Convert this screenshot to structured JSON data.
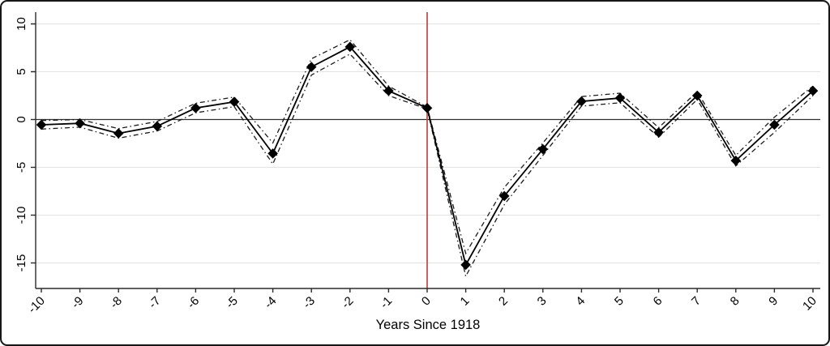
{
  "figure": {
    "kind": "event-study-line-chart",
    "background": "#ffffff",
    "border_color": "#161616"
  },
  "chart_data": {
    "type": "line",
    "title": "",
    "xlabel": "Years Since 1918",
    "ylabel": "",
    "x": [
      -10,
      -9,
      -8,
      -7,
      -6,
      -5,
      -4,
      -3,
      -2,
      -1,
      0,
      1,
      2,
      3,
      4,
      5,
      6,
      7,
      8,
      9,
      10
    ],
    "series": [
      {
        "name": "point-estimate",
        "marker": "diamond",
        "line": "solid",
        "values": [
          -0.55,
          -0.4,
          -1.45,
          -0.7,
          1.2,
          1.85,
          -3.55,
          5.5,
          7.6,
          3.0,
          1.2,
          -15.2,
          -8.0,
          -3.1,
          1.9,
          2.25,
          -1.35,
          2.5,
          -4.3,
          -0.55,
          3.0
        ]
      },
      {
        "name": "band-upper",
        "marker": "none",
        "line": "dash-dot",
        "values": [
          -0.1,
          0.0,
          -0.95,
          -0.2,
          1.7,
          2.35,
          -2.45,
          6.35,
          8.35,
          3.5,
          1.3,
          -14.0,
          -7.1,
          -2.45,
          2.4,
          2.75,
          -0.85,
          2.9,
          -3.75,
          0.25,
          3.5
        ]
      },
      {
        "name": "band-lower",
        "marker": "none",
        "line": "dash-dot",
        "values": [
          -1.0,
          -0.8,
          -1.95,
          -1.2,
          0.7,
          1.35,
          -4.65,
          4.65,
          6.85,
          2.5,
          1.1,
          -16.4,
          -8.9,
          -3.75,
          1.4,
          1.75,
          -1.85,
          2.1,
          -4.85,
          -1.35,
          2.5
        ]
      }
    ],
    "x_ticks": [
      -10,
      -9,
      -8,
      -7,
      -6,
      -5,
      -4,
      -3,
      -2,
      -1,
      0,
      1,
      2,
      3,
      4,
      5,
      6,
      7,
      8,
      9,
      10
    ],
    "y_ticks": [
      10,
      5,
      0,
      -5,
      -10,
      -15
    ],
    "xlim": [
      -10.2,
      10.3
    ],
    "ylim": [
      -17.7,
      11.2
    ],
    "grid": "horizontal",
    "legend": "none",
    "reference_lines": {
      "vertical_x": 0,
      "horizontal_y": 0
    },
    "colors": {
      "line": "#000000",
      "band": "#1a1a1a",
      "event_line": "#bb4a44",
      "grid": "#e2e2e2",
      "axis": "#2b2b2b",
      "text": "#000000"
    }
  }
}
